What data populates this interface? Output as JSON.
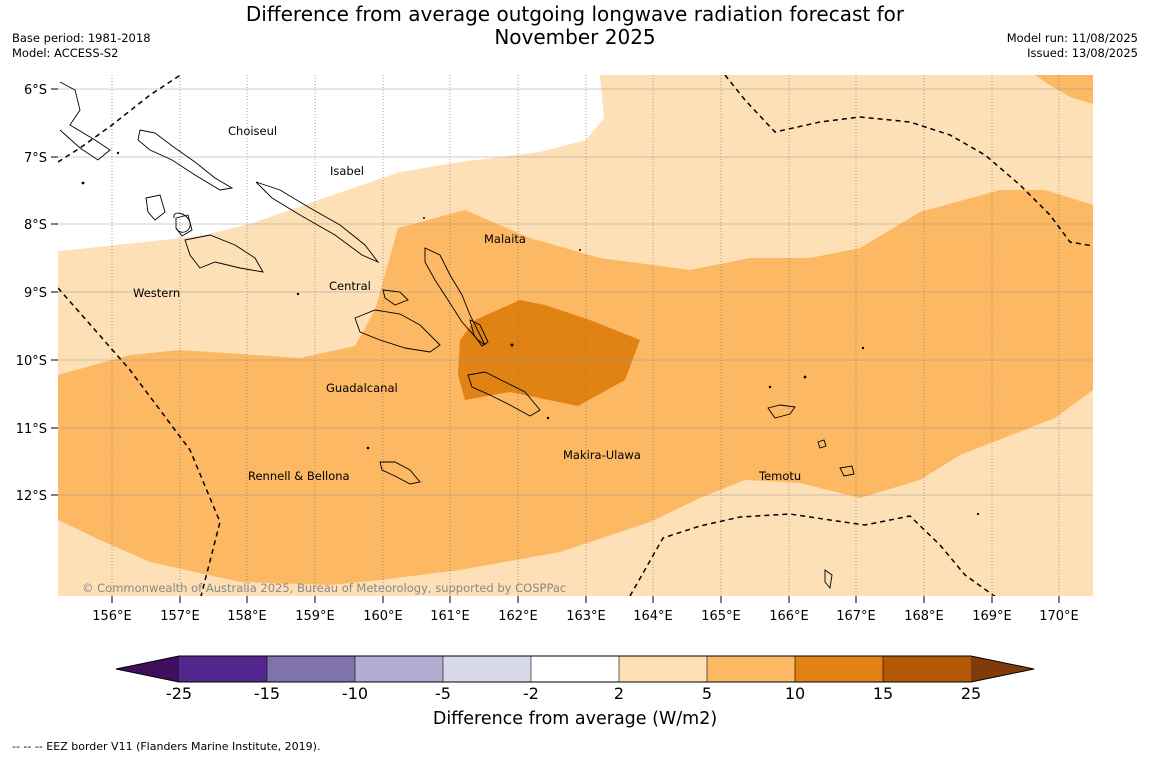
{
  "title": {
    "line1": "Difference from average outgoing longwave radiation forecast for",
    "line2": "November 2025"
  },
  "meta_left": {
    "base_period": "Base period: 1981-2018",
    "model": "Model: ACCESS-S2"
  },
  "meta_right": {
    "model_run": "Model run: 11/08/2025",
    "issued": "Issued: 13/08/2025"
  },
  "map": {
    "lat_labels": [
      "6°S",
      "7°S",
      "8°S",
      "9°S",
      "10°S",
      "11°S",
      "12°S"
    ],
    "lon_labels": [
      "156°E",
      "157°E",
      "158°E",
      "159°E",
      "160°E",
      "161°E",
      "162°E",
      "163°E",
      "164°E",
      "165°E",
      "166°E",
      "167°E",
      "168°E",
      "169°E",
      "170°E"
    ],
    "provinces": [
      "Choiseul",
      "Isabel",
      "Malaita",
      "Western",
      "Central",
      "Guadalcanal",
      "Makira-Ulawa",
      "Rennell & Bellona",
      "Temotu"
    ],
    "copyright": "© Commonwealth of Australia 2025, Bureau of Meteorology, supported by COSPPac"
  },
  "colorbar": {
    "tick_labels": [
      "-25",
      "-15",
      "-10",
      "-5",
      "-2",
      "2",
      "5",
      "10",
      "15",
      "25"
    ],
    "colors": [
      "#3f0f5e",
      "#54278f",
      "#8073ac",
      "#b2abd2",
      "#d8daeb",
      "#ffffff",
      "#fee0b6",
      "#fdb863",
      "#e08214",
      "#b35806",
      "#7f3b08"
    ],
    "title": "Difference from average (W/m2)"
  },
  "footer": "-- -- -- EEZ border V11 (Flanders Marine Institute, 2019)."
}
